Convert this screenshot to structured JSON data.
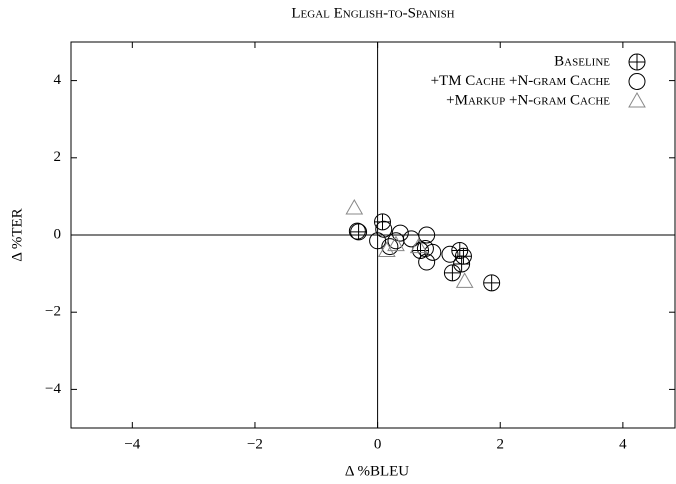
{
  "chart_data": {
    "type": "scatter",
    "title": "Legal English-to-Spanish",
    "xlabel": "Δ %BLEU",
    "ylabel": "Δ %TER",
    "xlim": [
      -5,
      4.85
    ],
    "ylim": [
      -5,
      5
    ],
    "xticks": [
      {
        "value": -4,
        "label": "−4"
      },
      {
        "value": -2,
        "label": "−2"
      },
      0,
      2,
      4
    ],
    "yticks": [
      {
        "value": -4,
        "label": "−4"
      },
      {
        "value": -2,
        "label": "−2"
      },
      0,
      2,
      4
    ],
    "legend": "upper right",
    "series": [
      {
        "name": "Baseline",
        "color": "#000000",
        "marker": "circle-plus",
        "x": [
          -0.31,
          0.08,
          0.7,
          1.34,
          1.4,
          1.37,
          1.22,
          1.86
        ],
        "y": [
          0.08,
          0.34,
          -0.4,
          -0.4,
          -0.55,
          -0.75,
          -0.98,
          -1.24
        ]
      },
      {
        "name": "+TM Cache +N-gram Cache",
        "color": "#000000",
        "marker": "circle",
        "x": [
          -0.33,
          0,
          0.1,
          0.3,
          0.37,
          0.55,
          0.78,
          0.8,
          0.8,
          0.9,
          1.18,
          0.2
        ],
        "y": [
          0.1,
          -0.15,
          0.15,
          -0.15,
          0.05,
          -0.1,
          -0.35,
          0,
          -0.7,
          -0.45,
          -0.5,
          -0.3
        ]
      },
      {
        "name": "+Markup +N-gram Cache",
        "color": "#888888",
        "marker": "triangle",
        "x": [
          -0.38,
          0.15,
          0.3,
          1.42,
          0.67
        ],
        "y": [
          0.7,
          -0.4,
          -0.25,
          -1.2,
          -0.3
        ]
      }
    ]
  }
}
